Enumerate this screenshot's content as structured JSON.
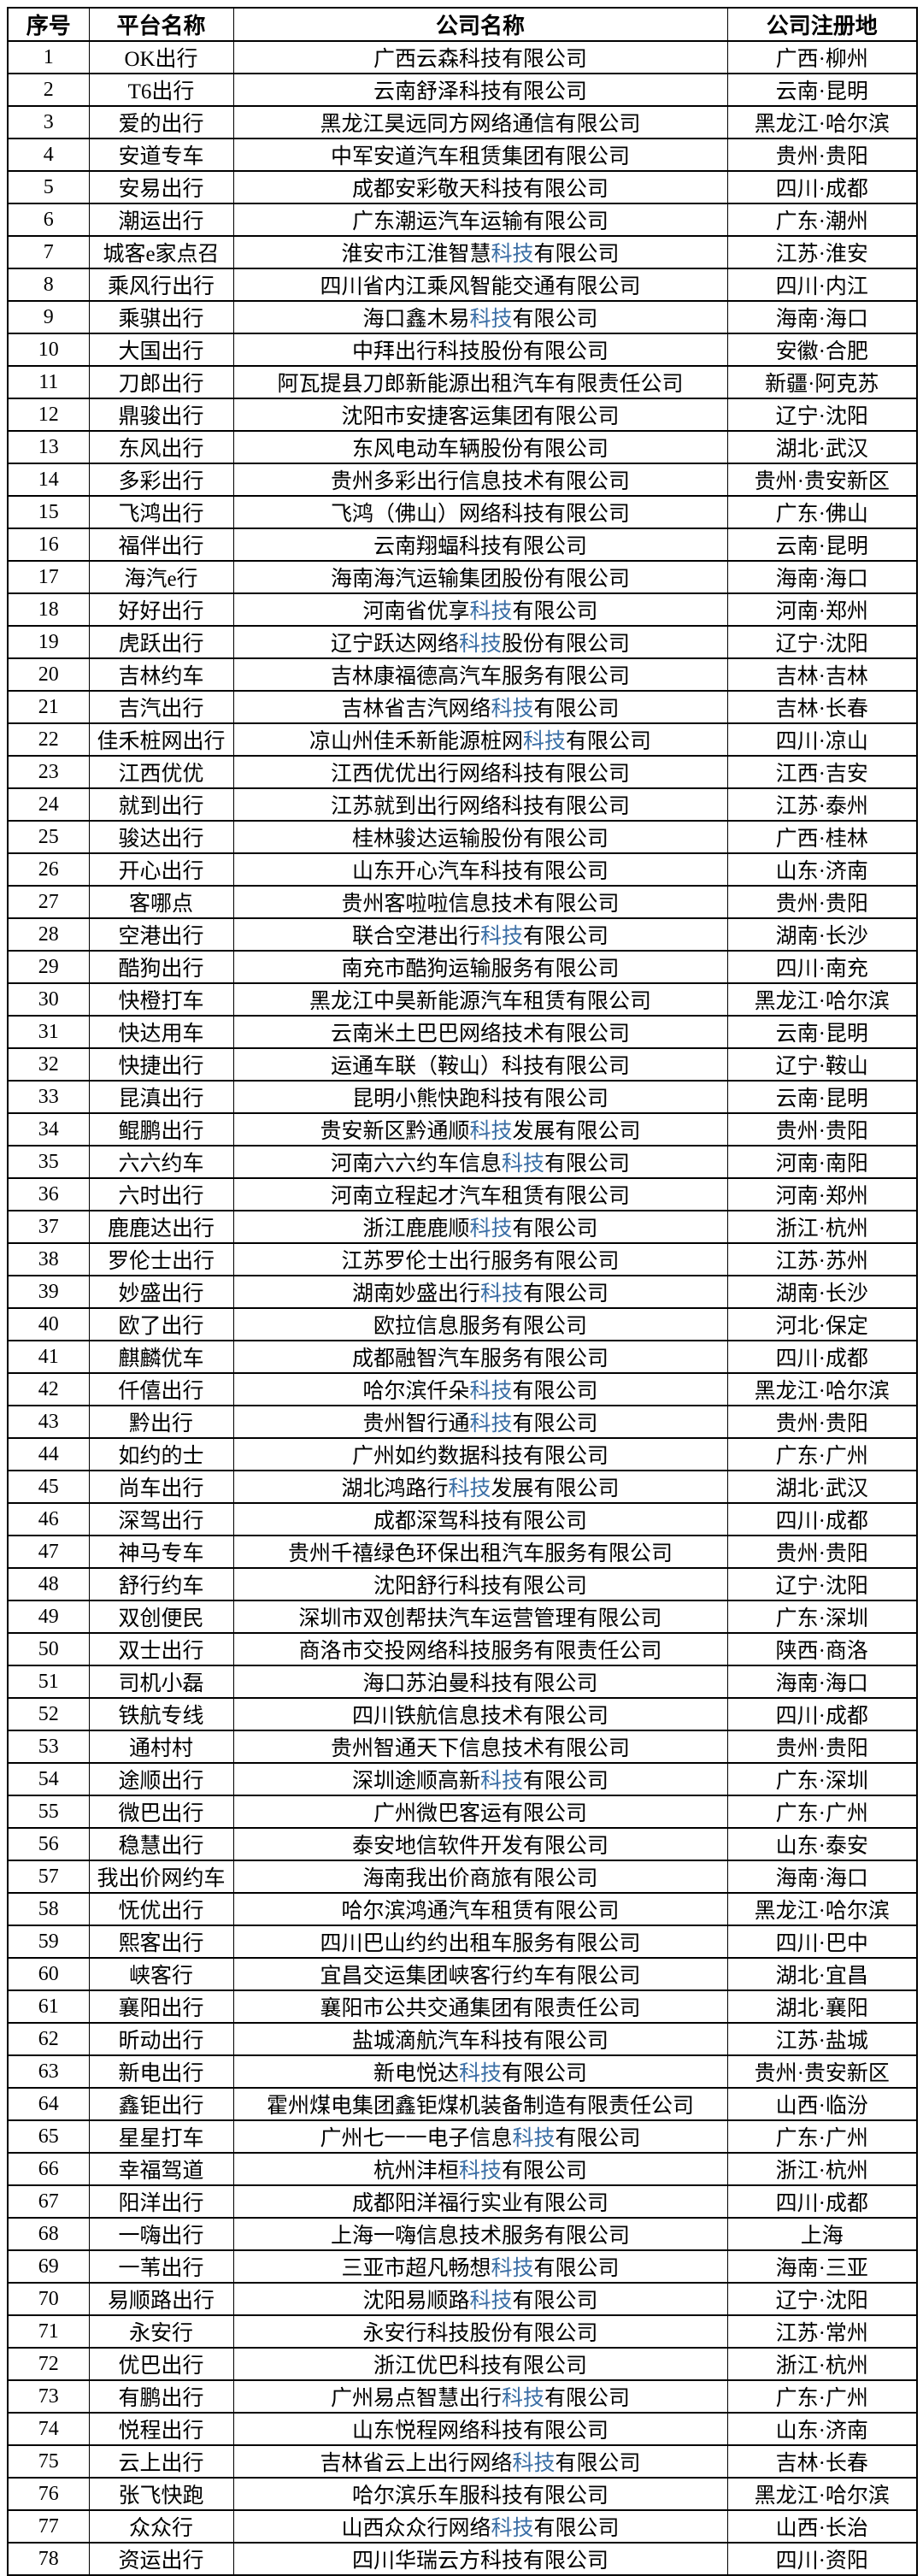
{
  "table": {
    "headers": [
      "序号",
      "平台名称",
      "公司名称",
      "公司注册地"
    ],
    "highlight_term": "科技",
    "highlight_color": "#3a6ea5",
    "text_color": "#000000",
    "border_color": "#000000",
    "rows": [
      {
        "no": "1",
        "platform": "OK出行",
        "company": "广西云森科技有限公司",
        "location": "广西·柳州",
        "hl": false
      },
      {
        "no": "2",
        "platform": "T6出行",
        "company": "云南舒泽科技有限公司",
        "location": "云南·昆明",
        "hl": false
      },
      {
        "no": "3",
        "platform": "爱的出行",
        "company": "黑龙江昊远同方网络通信有限公司",
        "location": "黑龙江·哈尔滨",
        "hl": false
      },
      {
        "no": "4",
        "platform": "安道专车",
        "company": "中军安道汽车租赁集团有限公司",
        "location": "贵州·贵阳",
        "hl": false
      },
      {
        "no": "5",
        "platform": "安易出行",
        "company": "成都安彩敬天科技有限公司",
        "location": "四川·成都",
        "hl": false
      },
      {
        "no": "6",
        "platform": "潮运出行",
        "company": "广东潮运汽车运输有限公司",
        "location": "广东·潮州",
        "hl": false
      },
      {
        "no": "7",
        "platform": "城客e家点召",
        "company": "淮安市江淮智慧科技有限公司",
        "location": "江苏·淮安",
        "hl": true
      },
      {
        "no": "8",
        "platform": "乘风行出行",
        "company": "四川省内江乘风智能交通有限公司",
        "location": "四川·内江",
        "hl": false
      },
      {
        "no": "9",
        "platform": "乘骐出行",
        "company": "海口鑫木易科技有限公司",
        "location": "海南·海口",
        "hl": true
      },
      {
        "no": "10",
        "platform": "大国出行",
        "company": "中拜出行科技股份有限公司",
        "location": "安徽·合肥",
        "hl": false
      },
      {
        "no": "11",
        "platform": "刀郎出行",
        "company": "阿瓦提县刀郎新能源出租汽车有限责任公司",
        "location": "新疆·阿克苏",
        "hl": false
      },
      {
        "no": "12",
        "platform": "鼎骏出行",
        "company": "沈阳市安捷客运集团有限公司",
        "location": "辽宁·沈阳",
        "hl": false
      },
      {
        "no": "13",
        "platform": "东风出行",
        "company": "东风电动车辆股份有限公司",
        "location": "湖北·武汉",
        "hl": false
      },
      {
        "no": "14",
        "platform": "多彩出行",
        "company": "贵州多彩出行信息技术有限公司",
        "location": "贵州·贵安新区",
        "hl": false
      },
      {
        "no": "15",
        "platform": "飞鸿出行",
        "company": "飞鸿（佛山）网络科技有限公司",
        "location": "广东·佛山",
        "hl": false
      },
      {
        "no": "16",
        "platform": "福伴出行",
        "company": "云南翔蝠科技有限公司",
        "location": "云南·昆明",
        "hl": false
      },
      {
        "no": "17",
        "platform": "海汽e行",
        "company": "海南海汽运输集团股份有限公司",
        "location": "海南·海口",
        "hl": false
      },
      {
        "no": "18",
        "platform": "好好出行",
        "company": "河南省优享科技有限公司",
        "location": "河南·郑州",
        "hl": true
      },
      {
        "no": "19",
        "platform": "虎跃出行",
        "company": "辽宁跃达网络科技股份有限公司",
        "location": "辽宁·沈阳",
        "hl": true
      },
      {
        "no": "20",
        "platform": "吉林约车",
        "company": "吉林康福德高汽车服务有限公司",
        "location": "吉林·吉林",
        "hl": false
      },
      {
        "no": "21",
        "platform": "吉汽出行",
        "company": "吉林省吉汽网络科技有限公司",
        "location": "吉林·长春",
        "hl": true
      },
      {
        "no": "22",
        "platform": "佳禾桩网出行",
        "company": "凉山州佳禾新能源桩网科技有限公司",
        "location": "四川·凉山",
        "hl": true
      },
      {
        "no": "23",
        "platform": "江西优优",
        "company": "江西优优出行网络科技有限公司",
        "location": "江西·吉安",
        "hl": false
      },
      {
        "no": "24",
        "platform": "就到出行",
        "company": "江苏就到出行网络科技有限公司",
        "location": "江苏·泰州",
        "hl": false
      },
      {
        "no": "25",
        "platform": "骏达出行",
        "company": "桂林骏达运输股份有限公司",
        "location": "广西·桂林",
        "hl": false
      },
      {
        "no": "26",
        "platform": "开心出行",
        "company": "山东开心汽车科技有限公司",
        "location": "山东·济南",
        "hl": false
      },
      {
        "no": "27",
        "platform": "客哪点",
        "company": "贵州客啦啦信息技术有限公司",
        "location": "贵州·贵阳",
        "hl": false
      },
      {
        "no": "28",
        "platform": "空港出行",
        "company": "联合空港出行科技有限公司",
        "location": "湖南·长沙",
        "hl": true
      },
      {
        "no": "29",
        "platform": "酷狗出行",
        "company": "南充市酷狗运输服务有限公司",
        "location": "四川·南充",
        "hl": false
      },
      {
        "no": "30",
        "platform": "快橙打车",
        "company": "黑龙江中昊新能源汽车租赁有限公司",
        "location": "黑龙江·哈尔滨",
        "hl": false
      },
      {
        "no": "31",
        "platform": "快达用车",
        "company": "云南米土巴巴网络技术有限公司",
        "location": "云南·昆明",
        "hl": false
      },
      {
        "no": "32",
        "platform": "快捷出行",
        "company": "运通车联（鞍山）科技有限公司",
        "location": "辽宁·鞍山",
        "hl": false
      },
      {
        "no": "33",
        "platform": "昆滇出行",
        "company": "昆明小熊快跑科技有限公司",
        "location": "云南·昆明",
        "hl": false
      },
      {
        "no": "34",
        "platform": "鲲鹏出行",
        "company": "贵安新区黔通顺科技发展有限公司",
        "location": "贵州·贵阳",
        "hl": true
      },
      {
        "no": "35",
        "platform": "六六约车",
        "company": "河南六六约车信息科技有限公司",
        "location": "河南·南阳",
        "hl": true
      },
      {
        "no": "36",
        "platform": "六时出行",
        "company": "河南立程起才汽车租赁有限公司",
        "location": "河南·郑州",
        "hl": false
      },
      {
        "no": "37",
        "platform": "鹿鹿达出行",
        "company": "浙江鹿鹿顺科技有限公司",
        "location": "浙江·杭州",
        "hl": true
      },
      {
        "no": "38",
        "platform": "罗伦士出行",
        "company": "江苏罗伦士出行服务有限公司",
        "location": "江苏·苏州",
        "hl": false
      },
      {
        "no": "39",
        "platform": "妙盛出行",
        "company": "湖南妙盛出行科技有限公司",
        "location": "湖南·长沙",
        "hl": true
      },
      {
        "no": "40",
        "platform": "欧了出行",
        "company": "欧拉信息服务有限公司",
        "location": "河北·保定",
        "hl": false
      },
      {
        "no": "41",
        "platform": "麒麟优车",
        "company": "成都融智汽车服务有限公司",
        "location": "四川·成都",
        "hl": false
      },
      {
        "no": "42",
        "platform": "仟僖出行",
        "company": "哈尔滨仟朵科技有限公司",
        "location": "黑龙江·哈尔滨",
        "hl": true
      },
      {
        "no": "43",
        "platform": "黔出行",
        "company": "贵州智行通科技有限公司",
        "location": "贵州·贵阳",
        "hl": true
      },
      {
        "no": "44",
        "platform": "如约的士",
        "company": "广州如约数据科技有限公司",
        "location": "广东·广州",
        "hl": false
      },
      {
        "no": "45",
        "platform": "尚车出行",
        "company": "湖北鸿路行科技发展有限公司",
        "location": "湖北·武汉",
        "hl": true
      },
      {
        "no": "46",
        "platform": "深驾出行",
        "company": "成都深驾科技有限公司",
        "location": "四川·成都",
        "hl": false
      },
      {
        "no": "47",
        "platform": "神马专车",
        "company": "贵州千禧绿色环保出租汽车服务有限公司",
        "location": "贵州·贵阳",
        "hl": false
      },
      {
        "no": "48",
        "platform": "舒行约车",
        "company": "沈阳舒行科技有限公司",
        "location": "辽宁·沈阳",
        "hl": false
      },
      {
        "no": "49",
        "platform": "双创便民",
        "company": "深圳市双创帮扶汽车运营管理有限公司",
        "location": "广东·深圳",
        "hl": false
      },
      {
        "no": "50",
        "platform": "双士出行",
        "company": "商洛市交投网络科技服务有限责任公司",
        "location": "陕西·商洛",
        "hl": false
      },
      {
        "no": "51",
        "platform": "司机小磊",
        "company": "海口苏泊曼科技有限公司",
        "location": "海南·海口",
        "hl": false
      },
      {
        "no": "52",
        "platform": "铁航专线",
        "company": "四川铁航信息技术有限公司",
        "location": "四川·成都",
        "hl": false
      },
      {
        "no": "53",
        "platform": "通村村",
        "company": "贵州智通天下信息技术有限公司",
        "location": "贵州·贵阳",
        "hl": false
      },
      {
        "no": "54",
        "platform": "途顺出行",
        "company": "深圳途顺高新科技有限公司",
        "location": "广东·深圳",
        "hl": true
      },
      {
        "no": "55",
        "platform": "微巴出行",
        "company": "广州微巴客运有限公司",
        "location": "广东·广州",
        "hl": false
      },
      {
        "no": "56",
        "platform": "稳慧出行",
        "company": "泰安地信软件开发有限公司",
        "location": "山东·泰安",
        "hl": false
      },
      {
        "no": "57",
        "platform": "我出价网约车",
        "company": "海南我出价商旅有限公司",
        "location": "海南·海口",
        "hl": false
      },
      {
        "no": "58",
        "platform": "怃优出行",
        "company": "哈尔滨鸿通汽车租赁有限公司",
        "location": "黑龙江·哈尔滨",
        "hl": false
      },
      {
        "no": "59",
        "platform": "熙客出行",
        "company": "四川巴山约约出租车服务有限公司",
        "location": "四川·巴中",
        "hl": false
      },
      {
        "no": "60",
        "platform": "峡客行",
        "company": "宜昌交运集团峡客行约车有限公司",
        "location": "湖北·宜昌",
        "hl": false
      },
      {
        "no": "61",
        "platform": "襄阳出行",
        "company": "襄阳市公共交通集团有限责任公司",
        "location": "湖北·襄阳",
        "hl": false
      },
      {
        "no": "62",
        "platform": "昕动出行",
        "company": "盐城滴航汽车科技有限公司",
        "location": "江苏·盐城",
        "hl": false
      },
      {
        "no": "63",
        "platform": "新电出行",
        "company": "新电悦达科技有限公司",
        "location": "贵州·贵安新区",
        "hl": true
      },
      {
        "no": "64",
        "platform": "鑫钜出行",
        "company": "霍州煤电集团鑫钜煤机装备制造有限责任公司",
        "location": "山西·临汾",
        "hl": false
      },
      {
        "no": "65",
        "platform": "星星打车",
        "company": "广州七一一电子信息科技有限公司",
        "location": "广东·广州",
        "hl": true
      },
      {
        "no": "66",
        "platform": "幸福驾道",
        "company": "杭州沣桓科技有限公司",
        "location": "浙江·杭州",
        "hl": true
      },
      {
        "no": "67",
        "platform": "阳洋出行",
        "company": "成都阳洋福行实业有限公司",
        "location": "四川·成都",
        "hl": false
      },
      {
        "no": "68",
        "platform": "一嗨出行",
        "company": "上海一嗨信息技术服务有限公司",
        "location": "上海",
        "hl": false
      },
      {
        "no": "69",
        "platform": "一苇出行",
        "company": "三亚市超凡畅想科技有限公司",
        "location": "海南·三亚",
        "hl": true
      },
      {
        "no": "70",
        "platform": "易顺路出行",
        "company": "沈阳易顺路科技有限公司",
        "location": "辽宁·沈阳",
        "hl": true
      },
      {
        "no": "71",
        "platform": "永安行",
        "company": "永安行科技股份有限公司",
        "location": "江苏·常州",
        "hl": false
      },
      {
        "no": "72",
        "platform": "优巴出行",
        "company": "浙江优巴科技有限公司",
        "location": "浙江·杭州",
        "hl": false
      },
      {
        "no": "73",
        "platform": "有鹏出行",
        "company": "广州易点智慧出行科技有限公司",
        "location": "广东·广州",
        "hl": true
      },
      {
        "no": "74",
        "platform": "悦程出行",
        "company": "山东悦程网络科技有限公司",
        "location": "山东·济南",
        "hl": false
      },
      {
        "no": "75",
        "platform": "云上出行",
        "company": "吉林省云上出行网络科技有限公司",
        "location": "吉林·长春",
        "hl": true
      },
      {
        "no": "76",
        "platform": "张飞快跑",
        "company": "哈尔滨乐车服科技有限公司",
        "location": "黑龙江·哈尔滨",
        "hl": false
      },
      {
        "no": "77",
        "platform": "众众行",
        "company": "山西众众行网络科技有限公司",
        "location": "山西·长治",
        "hl": true
      },
      {
        "no": "78",
        "platform": "资运出行",
        "company": "四川华瑞云方科技有限公司",
        "location": "四川·资阳",
        "hl": false
      }
    ]
  }
}
